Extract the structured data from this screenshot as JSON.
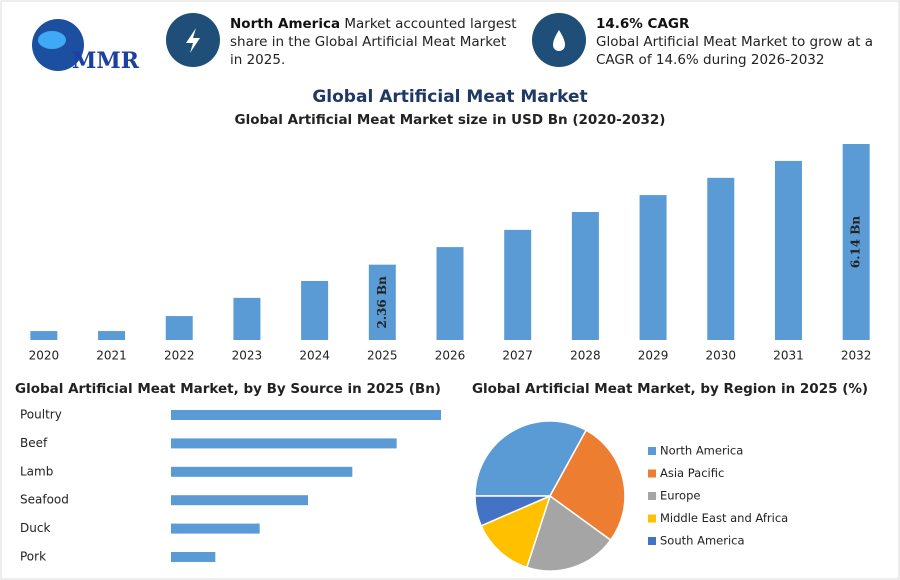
{
  "header": {
    "logo": "MMR",
    "info": [
      {
        "highlight": "North America",
        "text": " Market accounted largest share in the Global Artificial Meat Market in 2025."
      },
      {
        "highlight": "14.6% CAGR",
        "text": "Global Artificial Meat Market to grow at a CAGR of 14.6% during 2026-2032"
      }
    ]
  },
  "title": "Global Artificial Meat Market",
  "chart_data": [
    {
      "type": "bar",
      "title": "Global Artificial Meat Market size in USD Bn (2020-2032)",
      "categories": [
        "2020",
        "2021",
        "2022",
        "2023",
        "2024",
        "2025",
        "2026",
        "2027",
        "2028",
        "2029",
        "2030",
        "2031",
        "2032"
      ],
      "values": [
        0.28,
        0.28,
        0.75,
        1.32,
        1.85,
        2.36,
        2.91,
        3.45,
        4.01,
        4.54,
        5.08,
        5.61,
        6.14
      ],
      "value_labels": [
        null,
        null,
        null,
        null,
        null,
        "2.36 Bn",
        null,
        null,
        null,
        null,
        null,
        null,
        "6.14 Bn"
      ],
      "color": "#5b9bd5"
    },
    {
      "type": "bar",
      "orientation": "horizontal",
      "title": "Global Artificial Meat Market, by By Source in 2025 (Bn)",
      "categories": [
        "Poultry",
        "Beef",
        "Lamb",
        "Seafood",
        "Duck",
        "Pork"
      ],
      "values": [
        0.67,
        0.56,
        0.45,
        0.34,
        0.22,
        0.11
      ],
      "color": "#5b9bd5"
    },
    {
      "type": "pie",
      "title": "Global Artificial Meat Market, by Region in 2025 (%)",
      "categories": [
        "North America",
        "Asia Pacific",
        "Europe",
        "Middle East and Africa",
        "South America"
      ],
      "values": [
        33,
        27,
        20,
        13.5,
        6.5
      ],
      "colors": [
        "#5b9bd5",
        "#ed7d31",
        "#a5a5a5",
        "#ffc000",
        "#4472c4"
      ]
    }
  ]
}
